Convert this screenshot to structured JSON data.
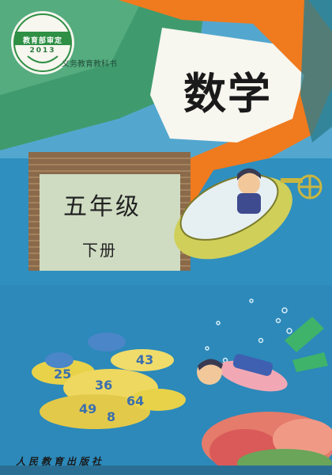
{
  "badge": {
    "line1": "教育部审定",
    "line2": "2013"
  },
  "series_label": "义务教育教科书",
  "title": "数学",
  "grade": "五年级",
  "volume": "下册",
  "publisher": "人民教育出版社",
  "colors": {
    "sky": "#2f8fbf",
    "orange": "#f07a1e",
    "green": "#3f9b6e",
    "brown": "#8a6a4a",
    "badge": "#2f8f45"
  },
  "illustration": {
    "subjects": [
      "submarine-with-child",
      "diving-child",
      "fish-school-with-numbers",
      "coral"
    ]
  }
}
